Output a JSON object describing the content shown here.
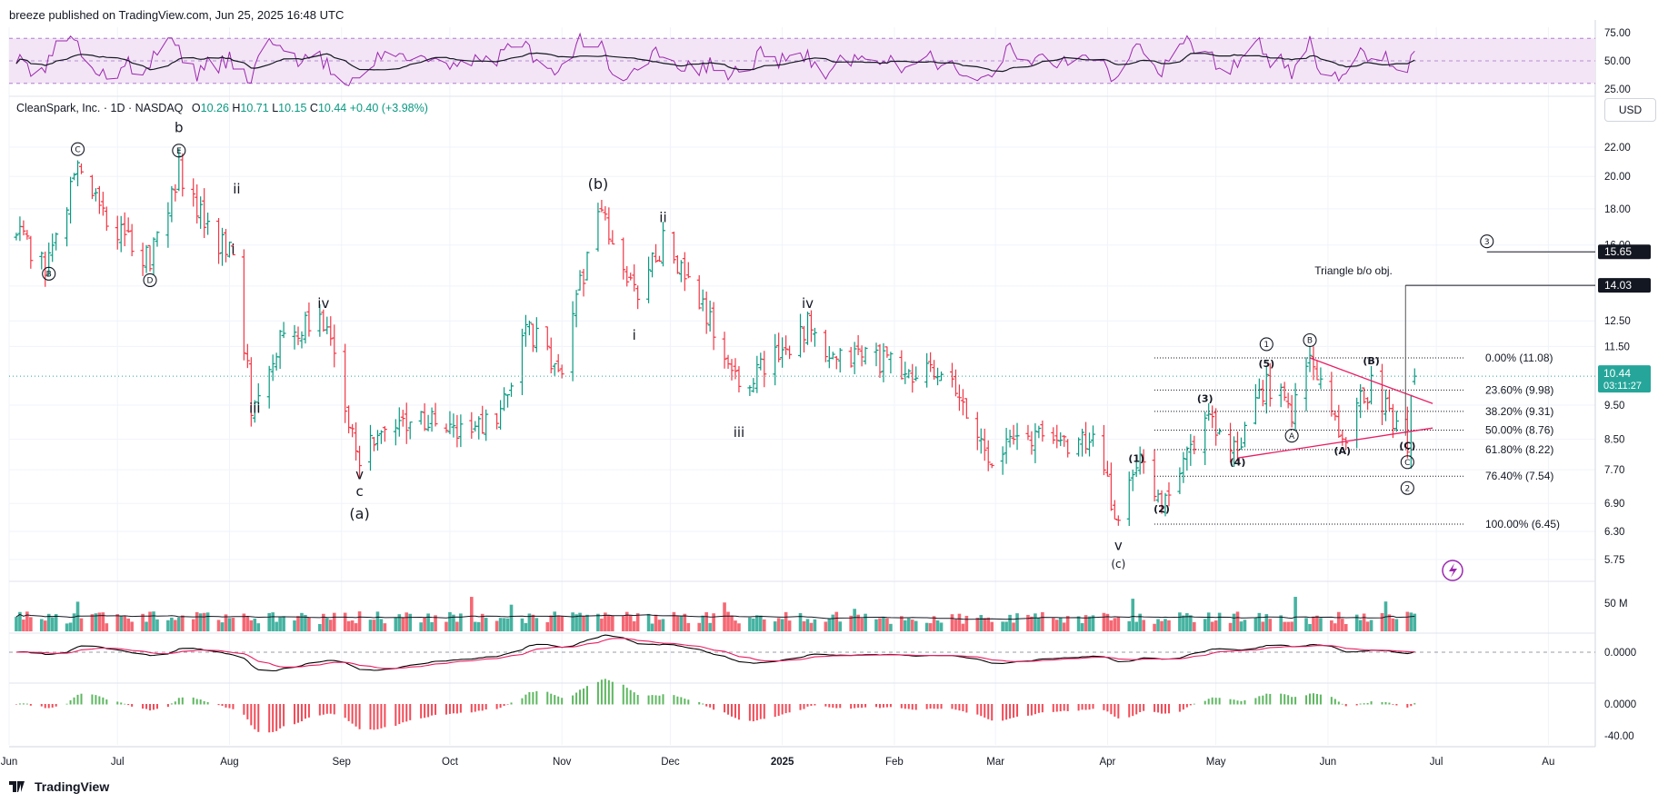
{
  "header": {
    "published": "breeze published on TradingView.com, Jun 25, 2025 16:48 UTC"
  },
  "footer": {
    "brand": "TradingView"
  },
  "legend": {
    "symbol": "CleanSpark, Inc. · 1D · NASDAQ",
    "open_label": "O",
    "open": "10.26",
    "high_label": "H",
    "high": "10.71",
    "low_label": "L",
    "low": "10.15",
    "close_label": "C",
    "close": "10.44",
    "change": "+0.40 (+3.98%)"
  },
  "currency": "USD",
  "colors": {
    "up": "#089981",
    "down": "#f23645",
    "rsi": "#9c27b0",
    "rsi_band": "#f3e5f5",
    "pink": "#e91e63",
    "macd": "#000000",
    "price_label": "#26a69a"
  },
  "chart_data": [
    {
      "type": "ohlc",
      "title": "CleanSpark, Inc. · 1D · NASDAQ",
      "x_ticks": [
        "Jun",
        "Jul",
        "Aug",
        "Sep",
        "Oct",
        "Nov",
        "Dec",
        "2025",
        "Feb",
        "Mar",
        "Apr",
        "May",
        "Jun",
        "Jul",
        "Au"
      ],
      "y_ticks": [
        "22.00",
        "20.00",
        "18.00",
        "16.00",
        "14.00",
        "12.50",
        "11.50",
        "9.50",
        "8.50",
        "7.70",
        "6.90",
        "6.30",
        "5.75"
      ],
      "ylim": [
        5.5,
        24
      ],
      "log_scale": true,
      "pivots": [
        [
          "2024-06-03",
          16.5
        ],
        [
          "2024-06-12",
          15.0
        ],
        [
          "2024-06-20",
          20.8
        ],
        [
          "2024-07-01",
          16.5
        ],
        [
          "2024-07-10",
          15.4
        ],
        [
          "2024-07-18",
          20.6
        ],
        [
          "2024-07-25",
          17.0
        ],
        [
          "2024-08-02",
          15.6
        ],
        [
          "2024-08-07",
          9.6
        ],
        [
          "2024-08-15",
          11.8
        ],
        [
          "2024-08-27",
          12.5
        ],
        [
          "2024-09-06",
          8.1
        ],
        [
          "2024-09-20",
          9.2
        ],
        [
          "2024-10-03",
          8.7
        ],
        [
          "2024-10-15",
          9.0
        ],
        [
          "2024-10-22",
          12.5
        ],
        [
          "2024-10-31",
          10.4
        ],
        [
          "2024-11-11",
          18.0
        ],
        [
          "2024-11-21",
          13.6
        ],
        [
          "2024-11-29",
          16.2
        ],
        [
          "2024-12-10",
          13.0
        ],
        [
          "2024-12-20",
          10.1
        ],
        [
          "2025-01-08",
          12.3
        ],
        [
          "2025-01-14",
          10.8
        ],
        [
          "2025-01-24",
          11.3
        ],
        [
          "2025-02-06",
          10.4
        ],
        [
          "2025-02-14",
          10.6
        ],
        [
          "2025-02-27",
          8.1
        ],
        [
          "2025-03-10",
          8.6
        ],
        [
          "2025-03-28",
          8.4
        ],
        [
          "2025-04-04",
          6.45
        ],
        [
          "2025-04-09",
          8.0
        ],
        [
          "2025-04-16",
          7.0
        ],
        [
          "2025-04-28",
          9.2
        ],
        [
          "2025-05-07",
          8.0
        ],
        [
          "2025-05-15",
          10.3
        ],
        [
          "2025-05-22",
          9.2
        ],
        [
          "2025-05-27",
          11.08
        ],
        [
          "2025-06-05",
          8.6
        ],
        [
          "2025-06-13",
          10.2
        ],
        [
          "2025-06-23",
          8.5
        ],
        [
          "2025-06-25",
          10.44
        ]
      ],
      "last_price": "10.44",
      "countdown": "03:11:27",
      "price_markers": [
        {
          "label": "15.65",
          "value": 15.65
        },
        {
          "label": "14.03",
          "value": 14.03
        }
      ],
      "annotations": {
        "triangle_text": "Triangle b/o obj.",
        "wave_labels": [
          "C",
          "B",
          "b",
          "E",
          "D",
          "i",
          "ii",
          "iii",
          "iv",
          "v",
          "c",
          "(a)",
          "(b)",
          "i",
          "ii",
          "iii",
          "iv",
          "v",
          "(c)",
          "(1)",
          "(2)",
          "(3)",
          "(4)",
          "(5)",
          "1",
          "A",
          "B",
          "(A)",
          "(B)",
          "(C)",
          "C",
          "2",
          "3"
        ]
      },
      "fibonacci": [
        {
          "label": "0.00% (11.08)",
          "value": 11.08
        },
        {
          "label": "23.60% (9.98)",
          "value": 9.98
        },
        {
          "label": "38.20% (9.31)",
          "value": 9.31
        },
        {
          "label": "50.00% (8.76)",
          "value": 8.76
        },
        {
          "label": "61.80% (8.22)",
          "value": 8.22
        },
        {
          "label": "76.40% (7.54)",
          "value": 7.54
        },
        {
          "label": "100.00% (6.45)",
          "value": 6.45
        }
      ]
    },
    {
      "type": "line",
      "panel": "rsi",
      "y_ticks": [
        "75.00",
        "50.00",
        "25.00"
      ],
      "ylim": [
        25,
        75
      ]
    },
    {
      "type": "bar",
      "panel": "volume",
      "y_ticks": [
        "50 M"
      ]
    },
    {
      "type": "line",
      "panel": "macd",
      "y_ticks": [
        "0.0000"
      ]
    },
    {
      "type": "bar",
      "panel": "macd_histogram",
      "y_ticks": [
        "0.0000",
        "-40.00"
      ]
    }
  ]
}
